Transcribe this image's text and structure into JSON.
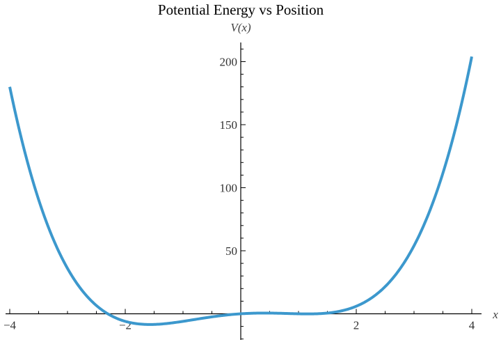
{
  "chart_data": {
    "type": "line",
    "title": "Potential Energy vs Position",
    "xlabel": "x",
    "ylabel": "V(x)",
    "xlim": [
      -4,
      4
    ],
    "ylim": [
      -20,
      215
    ],
    "x_ticks": [
      -4,
      -2,
      2,
      4
    ],
    "x_tick_labels": [
      "−4",
      "−2",
      "2",
      "4"
    ],
    "y_ticks": [
      50,
      100,
      150,
      200
    ],
    "y_tick_labels": [
      "50",
      "100",
      "150",
      "200"
    ],
    "x_minor_step": 0.5,
    "y_minor_step": 10,
    "grid": false,
    "legend": null,
    "function": "V(x) = x^4 - 4x^2 + 3x",
    "series": [
      {
        "name": "V(x)",
        "color": "#3C98CD",
        "x": [
          -4,
          -3.5,
          -3,
          -2.5,
          -2.35,
          -2,
          -1.64,
          -1.5,
          -1,
          -0.5,
          0,
          0.4,
          0.5,
          1,
          1.2,
          1.5,
          2,
          2.5,
          3,
          3.5,
          4
        ],
        "values": [
          180,
          89.6,
          36,
          6.6,
          0.9,
          -6,
          -8.5,
          -8.4,
          -6,
          -2.4,
          0,
          0.6,
          0.56,
          0,
          -0.3,
          0.56,
          6,
          21.5,
          54,
          111.6,
          204
        ]
      }
    ]
  }
}
